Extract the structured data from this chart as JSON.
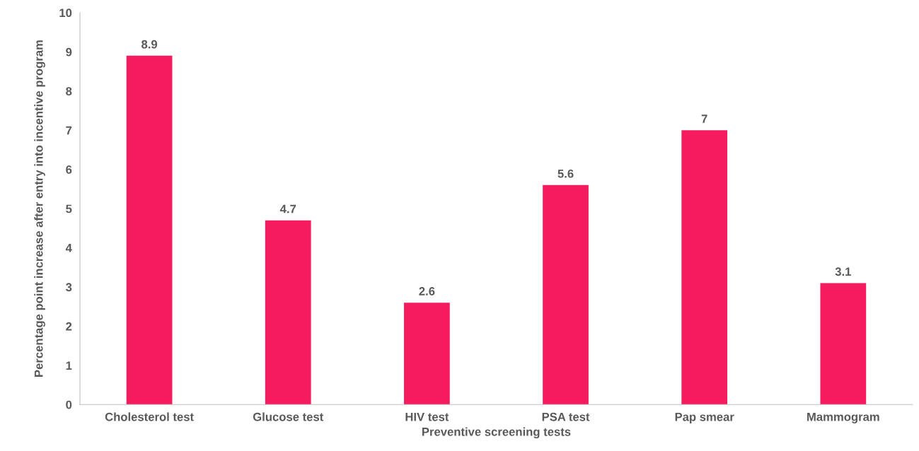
{
  "chart_data": {
    "type": "bar",
    "xlabel": "Preventive screening tests",
    "ylabel": "Percentage point increase after entry into incentive program",
    "categories": [
      "Cholesterol test",
      "Glucose test",
      "HIV test",
      "PSA test",
      "Pap smear",
      "Mammogram"
    ],
    "values": [
      8.9,
      4.7,
      2.6,
      5.6,
      7,
      3.1
    ],
    "color": "#f41c5e",
    "ylim": [
      0,
      10
    ],
    "yticks": [
      0,
      1,
      2,
      3,
      4,
      5,
      6,
      7,
      8,
      9,
      10
    ],
    "grid": false,
    "data_labels": true
  }
}
